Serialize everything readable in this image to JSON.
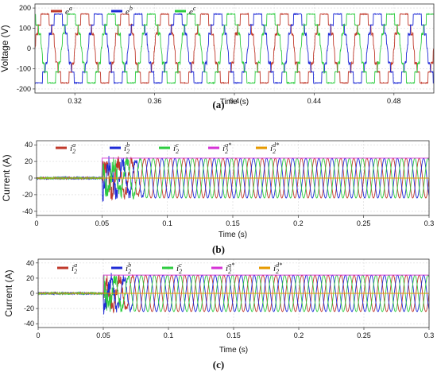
{
  "chart_data": [
    {
      "type": "line",
      "caption": "(a)",
      "xlabel": "Time (s)",
      "ylabel": "Voltage (V)",
      "xlim": [
        0.3,
        0.5
      ],
      "ylim": [
        -220,
        220
      ],
      "xticks": [
        0.32,
        0.36,
        0.4,
        0.44,
        0.48
      ],
      "xtick_labels": [
        "0.32",
        "0.36",
        "0.4",
        "0.44",
        "0.48"
      ],
      "yticks": [
        -200,
        -100,
        0,
        100,
        200
      ],
      "ytick_labels": [
        "-200",
        "-100",
        "0",
        "100",
        "200"
      ],
      "grid": true,
      "legend_position": "top-left",
      "series": [
        {
          "name": "e",
          "sup": "a",
          "color": "#c0392b",
          "amplitude": 170,
          "frequency_hz": 50,
          "phase_deg": 0,
          "waveform": "stepped"
        },
        {
          "name": "e",
          "sup": "b",
          "color": "#1f2bd6",
          "amplitude": 170,
          "frequency_hz": 50,
          "phase_deg": -120,
          "waveform": "stepped"
        },
        {
          "name": "e",
          "sup": "c",
          "color": "#2ecc40",
          "amplitude": 170,
          "frequency_hz": 50,
          "phase_deg": 120,
          "waveform": "stepped"
        }
      ]
    },
    {
      "type": "line",
      "caption": "(b)",
      "xlabel": "Time (s)",
      "ylabel": "Current (A)",
      "xlim": [
        0,
        0.3
      ],
      "ylim": [
        -45,
        45
      ],
      "xticks": [
        0,
        0.05,
        0.1,
        0.15,
        0.2,
        0.25,
        0.3
      ],
      "xtick_labels": [
        "0",
        "0.05",
        "0.1",
        "0.15",
        "0.2",
        "0.25",
        "0.3"
      ],
      "yticks": [
        -40,
        -20,
        0,
        20,
        40
      ],
      "ytick_labels": [
        "-40",
        "-20",
        "0",
        "20",
        "40"
      ],
      "grid": true,
      "legend_position": "top",
      "step_time": 0.05,
      "settle_time": 0.085,
      "series": [
        {
          "name": "i",
          "sub": "2",
          "sup": "a",
          "color": "#c0392b",
          "amplitude": 24,
          "frequency_hz": 100,
          "phase_deg": 0
        },
        {
          "name": "i",
          "sub": "2",
          "sup": "b",
          "color": "#1f2bd6",
          "amplitude": 24,
          "frequency_hz": 100,
          "phase_deg": -120
        },
        {
          "name": "i",
          "sub": "2",
          "sup": "c",
          "color": "#2ecc40",
          "amplitude": 24,
          "frequency_hz": 100,
          "phase_deg": 120
        },
        {
          "name": "i",
          "sub": "2",
          "sup": "q*",
          "color": "#d633d6",
          "value_after_step": 24
        },
        {
          "name": "i",
          "sub": "2",
          "sup": "d*",
          "color": "#e69a00",
          "value_after_step": 0
        }
      ]
    },
    {
      "type": "line",
      "caption": "(c)",
      "xlabel": "Time (s)",
      "ylabel": "Current (A)",
      "xlim": [
        0,
        0.3
      ],
      "ylim": [
        -45,
        45
      ],
      "xticks": [
        0,
        0.05,
        0.1,
        0.15,
        0.2,
        0.25,
        0.3
      ],
      "xtick_labels": [
        "0",
        "0.05",
        "0.1",
        "0.15",
        "0.2",
        "0.25",
        "0.3"
      ],
      "yticks": [
        -40,
        -20,
        0,
        20,
        40
      ],
      "ytick_labels": [
        "-40",
        "-20",
        "0",
        "20",
        "40"
      ],
      "grid": true,
      "legend_position": "top",
      "step_time": 0.05,
      "settle_time": 0.075,
      "series": [
        {
          "name": "i",
          "sub": "2",
          "sup": "a",
          "color": "#c0392b",
          "amplitude": 24,
          "frequency_hz": 100,
          "phase_deg": 0
        },
        {
          "name": "i",
          "sub": "2",
          "sup": "b",
          "color": "#1f2bd6",
          "amplitude": 24,
          "frequency_hz": 100,
          "phase_deg": -120
        },
        {
          "name": "i",
          "sub": "2",
          "sup": "c",
          "color": "#2ecc40",
          "amplitude": 24,
          "frequency_hz": 100,
          "phase_deg": 120
        },
        {
          "name": "i",
          "sub": "2",
          "sup": "q*",
          "color": "#d633d6",
          "value_after_step": 24
        },
        {
          "name": "i",
          "sub": "2",
          "sup": "d*",
          "color": "#e69a00",
          "value_after_step": 0
        }
      ]
    }
  ]
}
